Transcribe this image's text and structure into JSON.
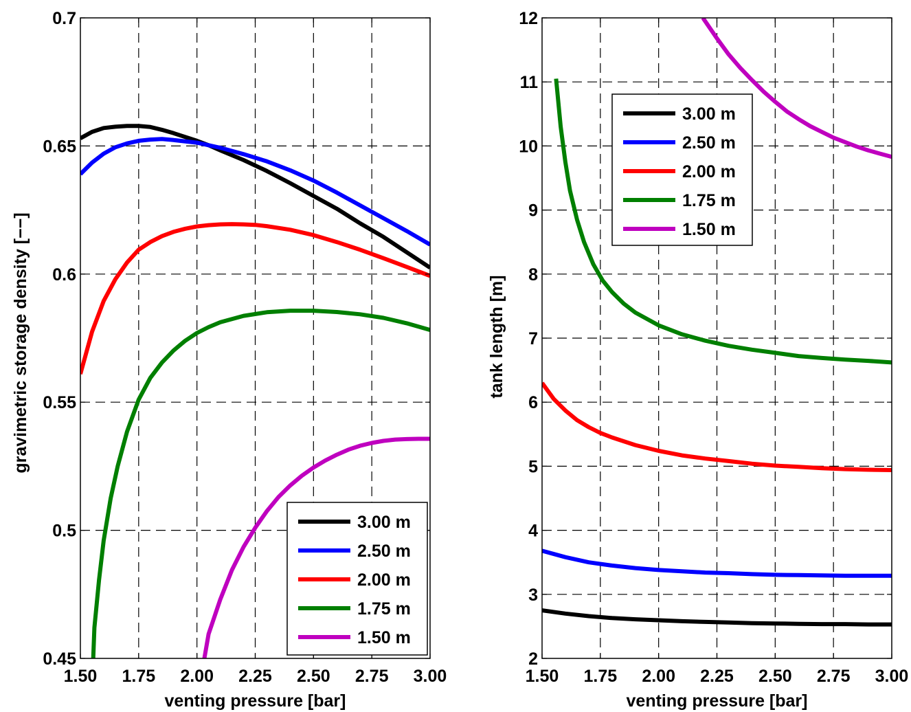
{
  "chart_data": [
    {
      "type": "line",
      "xlabel": "venting pressure [bar]",
      "ylabel": "gravimetric storage density [−−]",
      "xlim": [
        1.5,
        3.0
      ],
      "ylim": [
        0.45,
        0.7
      ],
      "xticks": [
        "1.50",
        "1.75",
        "2.00",
        "2.25",
        "2.50",
        "2.75",
        "3.00"
      ],
      "yticks": [
        "0.45",
        "0.5",
        "0.55",
        "0.6",
        "0.65",
        "0.7"
      ],
      "grid": true,
      "legend_position": "bottom-right",
      "series": [
        {
          "name": "3.00 m",
          "color": "#000000",
          "x": [
            1.5,
            1.55,
            1.6,
            1.65,
            1.7,
            1.75,
            1.8,
            1.85,
            1.9,
            2.0,
            2.05,
            2.1,
            2.2,
            2.3,
            2.4,
            2.5,
            2.6,
            2.7,
            2.8,
            2.9,
            3.0
          ],
          "y": [
            0.653,
            0.6555,
            0.657,
            0.6575,
            0.6578,
            0.6578,
            0.6574,
            0.6563,
            0.655,
            0.652,
            0.6503,
            0.6483,
            0.6445,
            0.6402,
            0.6355,
            0.6305,
            0.6255,
            0.6198,
            0.6145,
            0.6085,
            0.6025
          ]
        },
        {
          "name": "2.50 m",
          "color": "#0000ff",
          "x": [
            1.5,
            1.55,
            1.6,
            1.65,
            1.7,
            1.75,
            1.8,
            1.85,
            1.9,
            2.0,
            2.05,
            2.1,
            2.2,
            2.3,
            2.4,
            2.5,
            2.6,
            2.7,
            2.8,
            2.9,
            3.0
          ],
          "y": [
            0.639,
            0.6435,
            0.647,
            0.6495,
            0.651,
            0.652,
            0.6525,
            0.6527,
            0.6523,
            0.6513,
            0.6503,
            0.6493,
            0.6468,
            0.644,
            0.6405,
            0.6365,
            0.6318,
            0.6268,
            0.6218,
            0.6168,
            0.6115
          ]
        },
        {
          "name": "2.00 m",
          "color": "#ff0000",
          "x": [
            1.5,
            1.55,
            1.6,
            1.65,
            1.7,
            1.75,
            1.8,
            1.85,
            1.9,
            1.95,
            2.0,
            2.05,
            2.1,
            2.15,
            2.2,
            2.25,
            2.3,
            2.4,
            2.5,
            2.6,
            2.7,
            2.8,
            2.9,
            3.0
          ],
          "y": [
            0.561,
            0.5775,
            0.5895,
            0.598,
            0.6045,
            0.6095,
            0.6125,
            0.6148,
            0.6165,
            0.6177,
            0.6186,
            0.6191,
            0.6194,
            0.6195,
            0.6194,
            0.6192,
            0.6187,
            0.6173,
            0.6152,
            0.6125,
            0.6095,
            0.6062,
            0.6028,
            0.5993
          ]
        },
        {
          "name": "1.75 m",
          "color": "#007f00",
          "x": [
            1.555,
            1.56,
            1.58,
            1.6,
            1.63,
            1.66,
            1.7,
            1.75,
            1.8,
            1.85,
            1.9,
            1.95,
            2.0,
            2.05,
            2.1,
            2.2,
            2.3,
            2.4,
            2.5,
            2.6,
            2.7,
            2.8,
            2.9,
            3.0
          ],
          "y": [
            0.45,
            0.462,
            0.4805,
            0.496,
            0.5125,
            0.525,
            0.5385,
            0.551,
            0.5595,
            0.5655,
            0.5702,
            0.574,
            0.577,
            0.5793,
            0.5812,
            0.5837,
            0.5851,
            0.5857,
            0.5857,
            0.5852,
            0.5843,
            0.5829,
            0.5808,
            0.5782
          ]
        },
        {
          "name": "1.50 m",
          "color": "#bf00bf",
          "x": [
            2.03,
            2.05,
            2.1,
            2.15,
            2.2,
            2.25,
            2.3,
            2.35,
            2.4,
            2.45,
            2.5,
            2.55,
            2.6,
            2.65,
            2.7,
            2.75,
            2.8,
            2.85,
            2.9,
            2.95,
            3.0
          ],
          "y": [
            0.449,
            0.4595,
            0.473,
            0.4845,
            0.4935,
            0.501,
            0.5075,
            0.513,
            0.5175,
            0.5213,
            0.5245,
            0.5272,
            0.5295,
            0.5315,
            0.533,
            0.5341,
            0.5349,
            0.5354,
            0.5356,
            0.5357,
            0.5357
          ]
        }
      ]
    },
    {
      "type": "line",
      "xlabel": "venting pressure [bar]",
      "ylabel": "tank length [m]",
      "xlim": [
        1.5,
        3.0
      ],
      "ylim": [
        2,
        12
      ],
      "xticks": [
        "1.50",
        "1.75",
        "2.00",
        "2.25",
        "2.50",
        "2.75",
        "3.00"
      ],
      "yticks": [
        "2",
        "3",
        "4",
        "5",
        "6",
        "7",
        "8",
        "9",
        "10",
        "11",
        "12"
      ],
      "grid": true,
      "legend_position": "top-left",
      "series": [
        {
          "name": "3.00 m",
          "color": "#000000",
          "x": [
            1.5,
            1.6,
            1.7,
            1.8,
            1.9,
            2.0,
            2.1,
            2.2,
            2.3,
            2.4,
            2.5,
            2.6,
            2.7,
            2.8,
            2.9,
            3.0
          ],
          "y": [
            2.75,
            2.7,
            2.66,
            2.63,
            2.61,
            2.595,
            2.58,
            2.57,
            2.56,
            2.55,
            2.545,
            2.54,
            2.535,
            2.535,
            2.53,
            2.53
          ]
        },
        {
          "name": "2.50 m",
          "color": "#0000ff",
          "x": [
            1.5,
            1.6,
            1.7,
            1.8,
            1.9,
            2.0,
            2.1,
            2.2,
            2.3,
            2.4,
            2.5,
            2.6,
            2.7,
            2.8,
            2.9,
            3.0
          ],
          "y": [
            3.68,
            3.58,
            3.5,
            3.45,
            3.41,
            3.38,
            3.36,
            3.34,
            3.33,
            3.315,
            3.305,
            3.3,
            3.295,
            3.29,
            3.29,
            3.29
          ]
        },
        {
          "name": "2.00 m",
          "color": "#ff0000",
          "x": [
            1.5,
            1.55,
            1.6,
            1.65,
            1.7,
            1.75,
            1.8,
            1.9,
            2.0,
            2.1,
            2.2,
            2.3,
            2.4,
            2.5,
            2.6,
            2.7,
            2.8,
            2.9,
            3.0
          ],
          "y": [
            6.3,
            6.05,
            5.87,
            5.72,
            5.61,
            5.52,
            5.45,
            5.33,
            5.24,
            5.17,
            5.12,
            5.08,
            5.04,
            5.01,
            4.99,
            4.97,
            4.955,
            4.945,
            4.94
          ]
        },
        {
          "name": "1.75 m",
          "color": "#007f00",
          "x": [
            1.56,
            1.58,
            1.6,
            1.62,
            1.65,
            1.68,
            1.72,
            1.76,
            1.8,
            1.85,
            1.9,
            2.0,
            2.1,
            2.2,
            2.3,
            2.4,
            2.5,
            2.6,
            2.7,
            2.8,
            2.9,
            3.0
          ],
          "y": [
            11.05,
            10.3,
            9.75,
            9.3,
            8.85,
            8.5,
            8.15,
            7.9,
            7.72,
            7.54,
            7.4,
            7.2,
            7.06,
            6.96,
            6.88,
            6.82,
            6.77,
            6.72,
            6.69,
            6.665,
            6.645,
            6.62
          ]
        },
        {
          "name": "1.50 m",
          "color": "#bf00bf",
          "x": [
            2.19,
            2.25,
            2.3,
            2.35,
            2.4,
            2.45,
            2.5,
            2.55,
            2.6,
            2.65,
            2.7,
            2.75,
            2.8,
            2.85,
            2.9,
            2.95,
            3.0
          ],
          "y": [
            12.0,
            11.68,
            11.43,
            11.22,
            11.03,
            10.85,
            10.69,
            10.54,
            10.42,
            10.31,
            10.22,
            10.13,
            10.06,
            9.99,
            9.93,
            9.88,
            9.83
          ]
        }
      ]
    }
  ]
}
